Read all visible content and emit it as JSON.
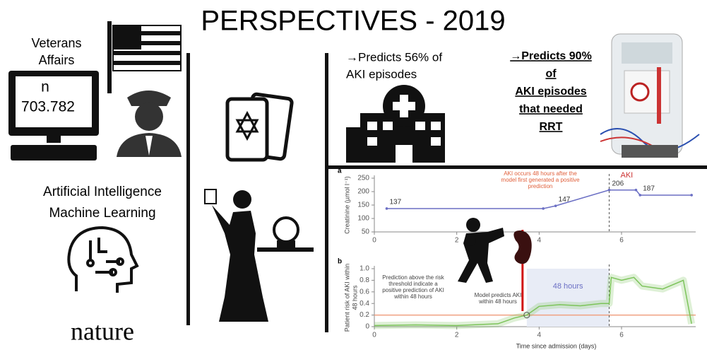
{
  "title": "PERSPECTIVES - 2019",
  "left": {
    "source": [
      "Veterans",
      "Affairs"
    ],
    "n_label": "n",
    "n_value": "703.782",
    "topic": [
      "Artificial Intelligence",
      "Machine Learning"
    ],
    "journal": "nature"
  },
  "claims": [
    {
      "lines": [
        "→Predicts 56% of",
        "AKI episodes"
      ]
    },
    {
      "lines": [
        "→Predicts 90%",
        "of",
        "AKI episodes",
        "that needed",
        "RRT"
      ]
    }
  ],
  "chart_data": [
    {
      "type": "line",
      "panel": "a",
      "ylabel": "Creatinine (µmol l⁻¹)",
      "x": [
        0.3,
        4.1,
        4.4,
        5.7,
        6.35,
        6.45,
        7.7
      ],
      "values": [
        137,
        137,
        147,
        206,
        206,
        187,
        187
      ],
      "value_labels": [
        "137",
        null,
        "147",
        "206",
        null,
        "187",
        null
      ],
      "color": "#6b6fc4",
      "xlim": [
        0,
        7.8
      ],
      "xticks": [
        0,
        2,
        4,
        6
      ],
      "ylim": [
        50,
        250
      ],
      "yticks": [
        50,
        100,
        150,
        200,
        250
      ],
      "event_x": 5.7,
      "event_label": "AKI",
      "annotation": [
        "AKI occurs 48 hours after the",
        "model first generated a positive",
        "prediction"
      ]
    },
    {
      "type": "line",
      "panel": "b",
      "ylabel": [
        "Patient risk of AKI within",
        "48 hours"
      ],
      "xlabel": "Time since admission (days)",
      "x": [
        0,
        1,
        2,
        3,
        3.4,
        3.7,
        4,
        4.5,
        5,
        5.5,
        5.7,
        5.75,
        6,
        6.3,
        6.5,
        7,
        7.5,
        7.7
      ],
      "values": [
        0.02,
        0.03,
        0.02,
        0.05,
        0.15,
        0.2,
        0.35,
        0.38,
        0.36,
        0.4,
        0.4,
        0.85,
        0.8,
        0.85,
        0.7,
        0.65,
        0.8,
        0.05
      ],
      "color": "#7cc35a",
      "threshold": 0.2,
      "threshold_color": "#f0a080",
      "xlim": [
        0,
        7.8
      ],
      "xticks": [
        0,
        2,
        4,
        6
      ],
      "ylim": [
        0,
        1
      ],
      "yticks": [
        0,
        0.2,
        0.4,
        0.6,
        0.8,
        {
          "value": 1,
          "label": "1.0"
        }
      ],
      "prediction_x": 3.7,
      "event_x": 5.7,
      "window_label": "48 hours",
      "annotations": [
        [
          "Prediction above the risk",
          "threshold indicate a",
          "positive prediction of AKI",
          "within 48 hours"
        ],
        [
          "Model predicts AKI",
          "within 48 hours"
        ]
      ]
    }
  ]
}
